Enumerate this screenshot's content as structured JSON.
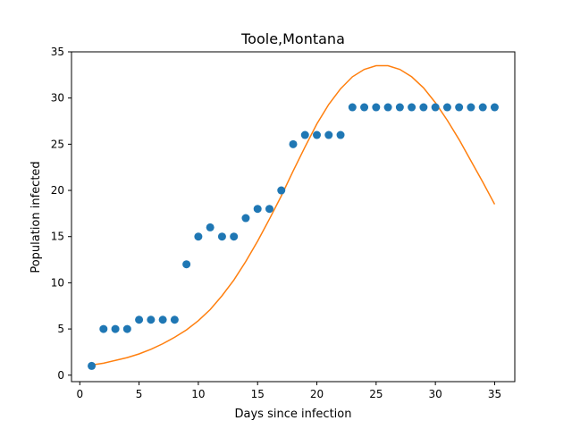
{
  "chart_data": {
    "type": "scatter",
    "title": "Toole,Montana",
    "xlabel": "Days since infection",
    "ylabel": "Population infected",
    "xlim": [
      -0.7,
      36.7
    ],
    "ylim": [
      -0.7,
      35
    ],
    "xticks": [
      0,
      5,
      10,
      15,
      20,
      25,
      30,
      35
    ],
    "yticks": [
      0,
      5,
      10,
      15,
      20,
      25,
      30,
      35
    ],
    "grid": false,
    "series": [
      {
        "kind": "scatter",
        "color": "#1f77b4",
        "x": [
          1,
          2,
          3,
          4,
          5,
          6,
          7,
          8,
          9,
          10,
          11,
          12,
          13,
          14,
          15,
          16,
          17,
          18,
          19,
          20,
          21,
          22,
          23,
          24,
          25,
          26,
          27,
          28,
          29,
          30,
          31,
          32,
          33,
          34,
          35
        ],
        "y": [
          1,
          5,
          5,
          5,
          6,
          6,
          6,
          6,
          12,
          15,
          16,
          15,
          15,
          17,
          18,
          18,
          20,
          25,
          26,
          26,
          26,
          26,
          29,
          29,
          29,
          29,
          29,
          29,
          29,
          29,
          29,
          29,
          29,
          29,
          29
        ]
      },
      {
        "kind": "line",
        "color": "#ff7f0e",
        "x": [
          1,
          2,
          3,
          4,
          5,
          6,
          7,
          8,
          9,
          10,
          11,
          12,
          13,
          14,
          15,
          16,
          17,
          18,
          19,
          20,
          21,
          22,
          23,
          24,
          25,
          26,
          27,
          28,
          29,
          30,
          31,
          32,
          33,
          34,
          35
        ],
        "y": [
          1.1,
          1.3,
          1.6,
          1.9,
          2.3,
          2.8,
          3.4,
          4.1,
          4.9,
          5.9,
          7.1,
          8.6,
          10.3,
          12.3,
          14.5,
          16.9,
          19.4,
          22.1,
          24.7,
          27.2,
          29.3,
          31.0,
          32.3,
          33.1,
          33.5,
          33.5,
          33.1,
          32.3,
          31.1,
          29.5,
          27.6,
          25.5,
          23.2,
          20.9,
          18.5
        ]
      }
    ]
  }
}
